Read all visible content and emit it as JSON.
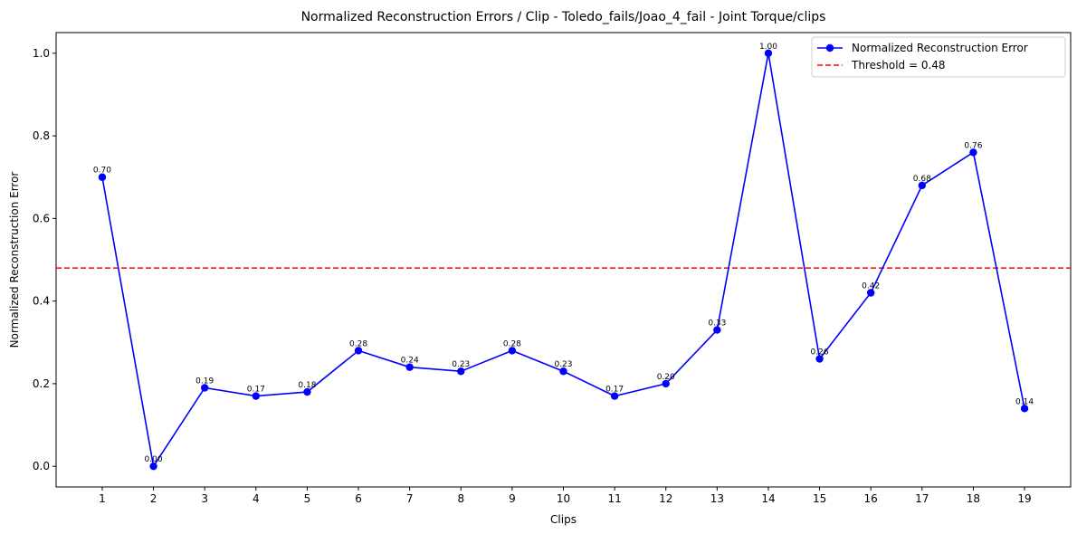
{
  "chart_data": {
    "type": "line",
    "title": "Normalized Reconstruction Errors / Clip - Toledo_fails/Joao_4_fail - Joint Torque/clips",
    "xlabel": "Clips",
    "ylabel": "Normalized Reconstruction Error",
    "ylim": [
      -0.05,
      1.05
    ],
    "grid": false,
    "legend_position": "top-right",
    "x": [
      1,
      2,
      3,
      4,
      5,
      6,
      7,
      8,
      9,
      10,
      11,
      12,
      13,
      14,
      15,
      16,
      17,
      18,
      19
    ],
    "y_ticks": [
      "0.0",
      "0.2",
      "0.4",
      "0.6",
      "0.8",
      "1.0"
    ],
    "series": [
      {
        "name": "Normalized Reconstruction Error",
        "color": "#0000ff",
        "values": [
          0.7,
          0.0,
          0.19,
          0.17,
          0.18,
          0.28,
          0.24,
          0.23,
          0.28,
          0.23,
          0.17,
          0.2,
          0.33,
          1.0,
          0.26,
          0.42,
          0.68,
          0.76,
          0.14
        ],
        "labels": [
          "0.70",
          "0.00",
          "0.19",
          "0.17",
          "0.18",
          "0.28",
          "0.24",
          "0.23",
          "0.28",
          "0.23",
          "0.17",
          "0.20",
          "0.33",
          "1.00",
          "0.26",
          "0.42",
          "0.68",
          "0.76",
          "0.14"
        ]
      }
    ],
    "threshold": {
      "name": "Threshold = 0.48",
      "value": 0.48,
      "color": "#ff0000"
    }
  }
}
